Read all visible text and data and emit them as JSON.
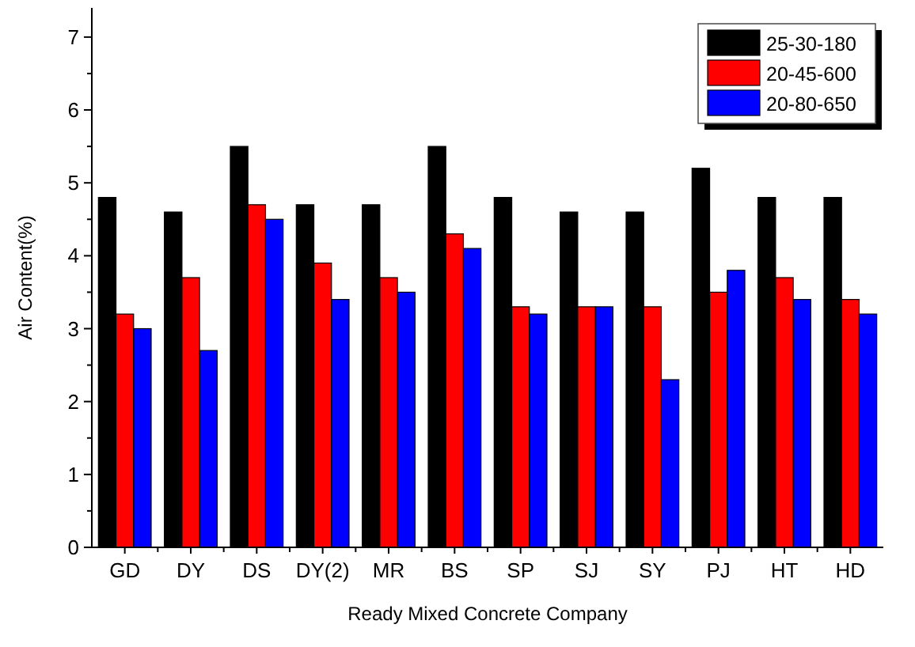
{
  "chart_data": {
    "type": "bar",
    "xlabel": "Ready Mixed Concrete Company",
    "ylabel": "Air Content(%)",
    "categories": [
      "GD",
      "DY",
      "DS",
      "DY(2)",
      "MR",
      "BS",
      "SP",
      "SJ",
      "SY",
      "PJ",
      "HT",
      "HD"
    ],
    "series": [
      {
        "name": "25-30-180",
        "color": "#000000",
        "values": [
          4.8,
          4.6,
          5.5,
          4.7,
          4.7,
          5.5,
          4.8,
          4.6,
          4.6,
          5.2,
          4.8,
          4.8
        ]
      },
      {
        "name": "20-45-600",
        "color": "#ff0000",
        "values": [
          3.2,
          3.7,
          4.7,
          3.9,
          3.7,
          4.3,
          3.3,
          3.3,
          3.3,
          3.5,
          3.7,
          3.4
        ]
      },
      {
        "name": "20-80-650",
        "color": "#0000ff",
        "values": [
          3.0,
          2.7,
          4.5,
          3.4,
          3.5,
          4.1,
          3.2,
          3.3,
          2.3,
          3.8,
          3.4,
          3.2
        ]
      }
    ],
    "ylim": [
      0,
      7.4
    ],
    "yticks": [
      0,
      {
        "value": 0.5,
        "label": null
      },
      1,
      {
        "value": 1.5,
        "label": null
      },
      2,
      {
        "value": 2.5,
        "label": null
      },
      3,
      {
        "value": 3.5,
        "label": null
      },
      4,
      {
        "value": 4.5,
        "label": null
      },
      5,
      {
        "value": 5.5,
        "label": null
      },
      6,
      {
        "value": 6.5,
        "label": null
      },
      7
    ],
    "legend": "top right",
    "grid": false
  }
}
